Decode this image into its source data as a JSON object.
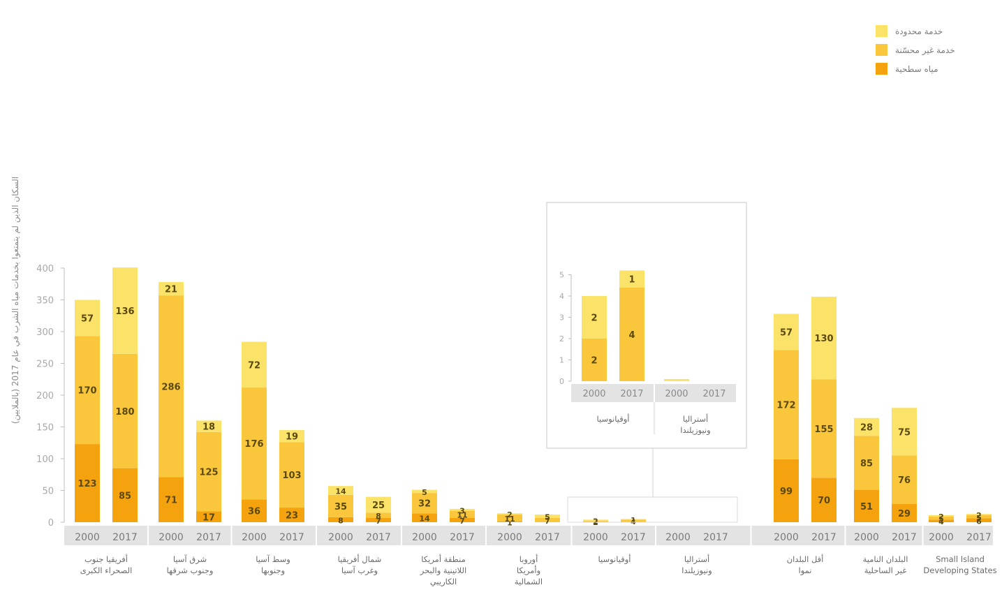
{
  "chart_data": {
    "type": "bar",
    "stacked": true,
    "ylabel": "السكان الذين لم يتمتعوا بخدمات مياه الشرب في عام 2017 (بالملايين)",
    "ylim": [
      0,
      400
    ],
    "yticks": [
      0,
      50,
      100,
      150,
      200,
      250,
      300,
      350,
      400
    ],
    "grid": false,
    "legend": "top-right",
    "legend_entries": [
      "خدمة محدودة",
      "خدمة غير محسّنة",
      "مياه سطحية"
    ],
    "colors": {
      "surface": "#F5A20F",
      "unimproved": "#F9C63C",
      "limited": "#FBE36A",
      "band": "#e3e3e3",
      "axis": "#bdbdbd"
    },
    "groups": [
      {
        "label": "أفريقيا جنوب الصحراء الكبرى",
        "bars": [
          {
            "year": "2000",
            "surface": 123,
            "unimproved": 170,
            "limited": 57
          },
          {
            "year": "2017",
            "surface": 85,
            "unimproved": 180,
            "limited": 136
          }
        ]
      },
      {
        "label": "شرق آسيا وجنوب شرقها",
        "bars": [
          {
            "year": "2000",
            "surface": 71,
            "unimproved": 286,
            "limited": 21
          },
          {
            "year": "2017",
            "surface": 17,
            "unimproved": 125,
            "limited": 18
          }
        ]
      },
      {
        "label": "وسط آسيا وجنوبها",
        "bars": [
          {
            "year": "2000",
            "surface": 36,
            "unimproved": 176,
            "limited": 72
          },
          {
            "year": "2017",
            "surface": 23,
            "unimproved": 103,
            "limited": 19
          }
        ]
      },
      {
        "label": "شمال أفريقيا وغرب آسيا",
        "bars": [
          {
            "year": "2000",
            "surface": 8,
            "unimproved": 35,
            "limited": 14
          },
          {
            "year": "2017",
            "surface": 7,
            "unimproved": 8,
            "limited": 25
          }
        ]
      },
      {
        "label": "منطقة أمريكا اللاتينية والبحر الكاريبي",
        "bars": [
          {
            "year": "2000",
            "surface": 14,
            "unimproved": 32,
            "limited": 5
          },
          {
            "year": "2017",
            "surface": 7,
            "unimproved": 11,
            "limited": 3
          }
        ]
      },
      {
        "label": "أوروبا وأمريكا الشمالية",
        "bars": [
          {
            "year": "2000",
            "surface": 1,
            "unimproved": 11,
            "limited": 2
          },
          {
            "year": "2017",
            "surface": 0,
            "unimproved": 7,
            "limited": 5
          }
        ]
      },
      {
        "label": "أوقيانوسيا",
        "bars": [
          {
            "year": "2000",
            "surface": 0,
            "unimproved": 2,
            "limited": 2
          },
          {
            "year": "2017",
            "surface": 0,
            "unimproved": 4,
            "limited": 1
          }
        ]
      },
      {
        "label": "أستراليا ونيوزيلندا",
        "bars": [
          {
            "year": "2000",
            "surface": 0,
            "unimproved": 0,
            "limited": 0
          },
          {
            "year": "2017",
            "surface": 0,
            "unimproved": 0,
            "limited": 0
          }
        ]
      },
      {
        "label": "أقل البلدان نموا",
        "bars": [
          {
            "year": "2000",
            "surface": 99,
            "unimproved": 172,
            "limited": 57
          },
          {
            "year": "2017",
            "surface": 70,
            "unimproved": 155,
            "limited": 130
          }
        ]
      },
      {
        "label": "البلدان النامية غير الساحلية",
        "bars": [
          {
            "year": "2000",
            "surface": 51,
            "unimproved": 85,
            "limited": 28
          },
          {
            "year": "2017",
            "surface": 29,
            "unimproved": 76,
            "limited": 75
          }
        ]
      },
      {
        "label": "Small Island Developing States",
        "bars": [
          {
            "year": "2000",
            "surface": 4,
            "unimproved": 5,
            "limited": 2
          },
          {
            "year": "2017",
            "surface": 6,
            "unimproved": 5,
            "limited": 2
          }
        ]
      }
    ],
    "inset": {
      "ylim": [
        0,
        5
      ],
      "yticks": [
        0,
        1,
        2,
        3,
        4,
        5
      ],
      "groups": [
        {
          "label": "أوقيانوسيا",
          "bars": [
            {
              "year": "2000",
              "surface": 0,
              "unimproved": 2,
              "limited": 2
            },
            {
              "year": "2017",
              "surface": 0,
              "unimproved": 4.4,
              "limited": 0.8
            }
          ]
        },
        {
          "label": "أستراليا ونيوزيلندا",
          "bars": [
            {
              "year": "2000",
              "surface": 0,
              "unimproved": 0,
              "limited": 0.1
            },
            {
              "year": "2017",
              "surface": 0,
              "unimproved": 0,
              "limited": 0
            }
          ]
        }
      ],
      "value_labels": [
        {
          "group": 0,
          "bar": 0,
          "layer": "limited",
          "text": "2"
        },
        {
          "group": 0,
          "bar": 0,
          "layer": "unimproved",
          "text": "2"
        },
        {
          "group": 0,
          "bar": 1,
          "layer": "limited",
          "text": "1"
        },
        {
          "group": 0,
          "bar": 1,
          "layer": "unimproved",
          "text": "4"
        }
      ]
    }
  }
}
